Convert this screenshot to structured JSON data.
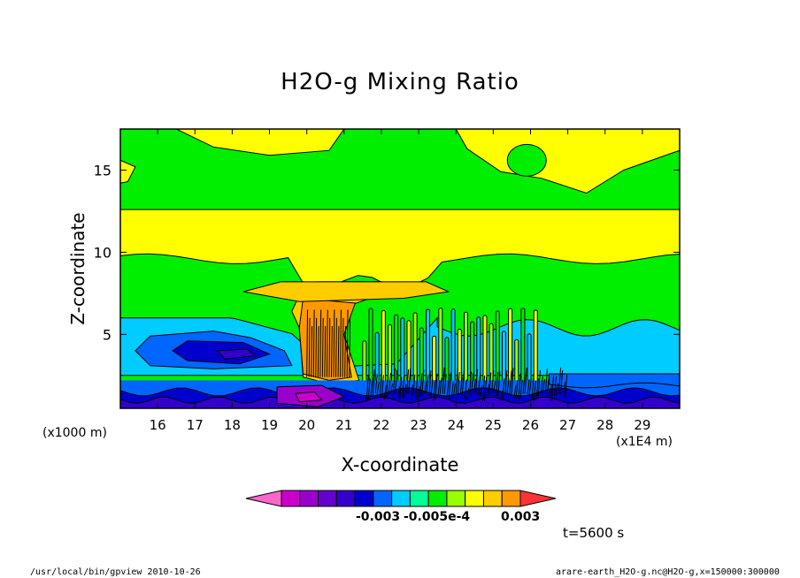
{
  "chart_data": {
    "type": "heatmap",
    "title": "H2O-g Mixing Ratio",
    "xlabel": "X-coordinate",
    "ylabel": "Z-coordinate",
    "x_unit": "(x1000 m)",
    "x_offset_unit": "(x1E4 m)",
    "x_ticks": [
      "16",
      "17",
      "18",
      "19",
      "20",
      "21",
      "22",
      "23",
      "24",
      "25",
      "26",
      "27",
      "28",
      "29"
    ],
    "x_tick_values": [
      16,
      17,
      18,
      19,
      20,
      21,
      22,
      23,
      24,
      25,
      26,
      27,
      28,
      29
    ],
    "xlim": [
      15.0,
      30.0
    ],
    "y_ticks": [
      "5",
      "10",
      "15"
    ],
    "y_tick_values": [
      5,
      10,
      15
    ],
    "ylim": [
      0.5,
      17.5
    ],
    "colorbar_labels": [
      "-0.003",
      "-0.005e-4",
      "0.003"
    ],
    "colors": [
      "#ff66cc",
      "#cc00cc",
      "#9900cc",
      "#6600cc",
      "#3300cc",
      "#0000cc",
      "#0066ff",
      "#00ccff",
      "#00ff99",
      "#00ee00",
      "#99ff00",
      "#ffff00",
      "#ffcc00",
      "#ff9900",
      "#ff3333"
    ],
    "time_label": "t=5600 s",
    "footer_left": "/usr/local/bin/gpview  2010-10-26",
    "footer_right": "arare-earth_H2O-g.nc@H2O-g,x=150000:300000"
  }
}
